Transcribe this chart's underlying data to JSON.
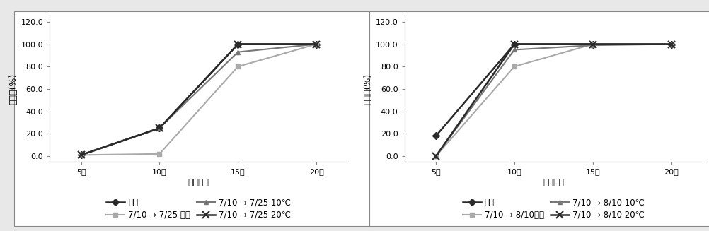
{
  "x_labels": [
    "5일",
    "10일",
    "15일",
    "20일"
  ],
  "x_values": [
    5,
    10,
    15,
    20
  ],
  "xlabel": "치상일수",
  "ylabel": "맹아율(%)",
  "ylim": [
    -5,
    125
  ],
  "yticks": [
    0.0,
    20.0,
    40.0,
    60.0,
    80.0,
    100.0,
    120.0
  ],
  "chart1": {
    "series": [
      {
        "label": "상온",
        "data": [
          1,
          25,
          100,
          100
        ],
        "color": "#2a2a2a",
        "marker": "D",
        "lw": 1.8,
        "ms": 5,
        "mfc": "#2a2a2a"
      },
      {
        "label": "7/10 → 7/25 상온",
        "data": [
          1,
          2,
          80,
          100
        ],
        "color": "#aaaaaa",
        "marker": "s",
        "lw": 1.5,
        "ms": 5,
        "mfc": "#aaaaaa"
      },
      {
        "label": "7/10 → 7/25 10℃",
        "data": [
          1,
          25,
          93,
          100
        ],
        "color": "#777777",
        "marker": "^",
        "lw": 1.5,
        "ms": 5,
        "mfc": "#777777"
      },
      {
        "label": "7/10 → 7/25 20℃",
        "data": [
          1,
          25,
          100,
          100
        ],
        "color": "#2a2a2a",
        "marker": "x",
        "lw": 1.8,
        "ms": 7,
        "mfc": "#2a2a2a"
      }
    ]
  },
  "chart2": {
    "series": [
      {
        "label": "상온",
        "data": [
          18,
          100,
          100,
          100
        ],
        "color": "#2a2a2a",
        "marker": "D",
        "lw": 1.8,
        "ms": 5,
        "mfc": "#2a2a2a"
      },
      {
        "label": "7/10 → 8/10상온",
        "data": [
          0,
          80,
          100,
          100
        ],
        "color": "#aaaaaa",
        "marker": "s",
        "lw": 1.5,
        "ms": 5,
        "mfc": "#aaaaaa"
      },
      {
        "label": "7/10 → 8/10 10℃",
        "data": [
          0,
          95,
          99,
          100
        ],
        "color": "#777777",
        "marker": "^",
        "lw": 1.5,
        "ms": 5,
        "mfc": "#777777"
      },
      {
        "label": "7/10 → 8/10 20℃",
        "data": [
          0,
          100,
          100,
          100
        ],
        "color": "#2a2a2a",
        "marker": "x",
        "lw": 1.8,
        "ms": 7,
        "mfc": "#2a2a2a"
      }
    ]
  },
  "background_color": "#e8e8e8",
  "plot_bg": "#ffffff",
  "border_color": "#aaaaaa",
  "fontsize": 9,
  "tick_fontsize": 8
}
